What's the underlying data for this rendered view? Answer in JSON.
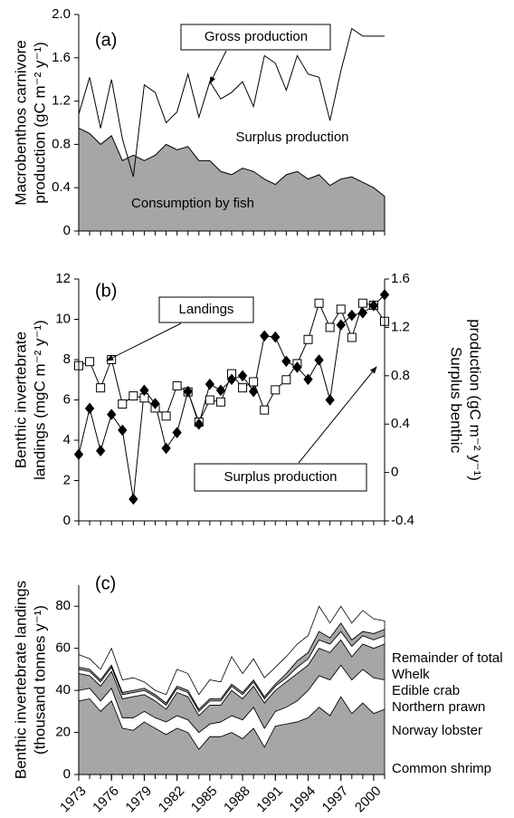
{
  "chart_data": [
    {
      "type": "area",
      "ylabel": [
        "Macrobenthos carnivore",
        "production (gC m⁻² y⁻¹)"
      ],
      "annotations": [
        "(a)",
        "Gross production",
        "Surplus production",
        "Consumption by fish"
      ],
      "x": [
        1973,
        1974,
        1975,
        1976,
        1977,
        1978,
        1979,
        1980,
        1981,
        1982,
        1983,
        1984,
        1985,
        1986,
        1987,
        1988,
        1989,
        1990,
        1991,
        1992,
        1993,
        1994,
        1995,
        1996,
        1997,
        1998,
        1999,
        2000,
        2001
      ],
      "xlim": [
        1973,
        2001
      ],
      "ylim": [
        0,
        2
      ],
      "yticks": [
        0,
        0.4,
        0.8,
        1.2,
        1.6,
        {
          "value": 2,
          "label": "2.0"
        }
      ],
      "series": [
        {
          "name": "Gross production",
          "color": "#000000",
          "values": [
            1.08,
            1.42,
            0.95,
            1.4,
            0.85,
            0.5,
            1.35,
            1.28,
            1.0,
            1.1,
            1.45,
            1.05,
            1.38,
            1.22,
            1.28,
            1.38,
            1.15,
            1.62,
            1.55,
            1.3,
            1.62,
            1.45,
            1.42,
            1.02,
            1.48,
            1.87,
            1.8,
            1.8,
            1.8
          ]
        },
        {
          "name": "Consumption by fish",
          "color": "#a6a6a6",
          "values": [
            0.95,
            0.9,
            0.8,
            0.88,
            0.65,
            0.7,
            0.65,
            0.7,
            0.8,
            0.75,
            0.78,
            0.65,
            0.65,
            0.55,
            0.52,
            0.58,
            0.55,
            0.48,
            0.43,
            0.52,
            0.55,
            0.48,
            0.52,
            0.42,
            0.48,
            0.5,
            0.45,
            0.4,
            0.32
          ]
        }
      ]
    },
    {
      "type": "line",
      "ylabel": [
        "Benthic invertebrate",
        "landings (mgC m⁻² y⁻¹)"
      ],
      "y2label": [
        "Surplus benthic",
        "production (gC m⁻² y⁻¹)"
      ],
      "annotations": [
        "(b)",
        "Landings",
        "Surplus production"
      ],
      "x": [
        1973,
        1974,
        1975,
        1976,
        1977,
        1978,
        1979,
        1980,
        1981,
        1982,
        1983,
        1984,
        1985,
        1986,
        1987,
        1988,
        1989,
        1990,
        1991,
        1992,
        1993,
        1994,
        1995,
        1996,
        1997,
        1998,
        1999,
        2000,
        2001
      ],
      "xlim": [
        1973,
        2001
      ],
      "ylim": [
        0,
        12
      ],
      "yticks": [
        0,
        2,
        4,
        6,
        8,
        10,
        12
      ],
      "y2lim": [
        -0.4,
        1.6
      ],
      "y2ticks": [
        -0.4,
        0,
        0.4,
        0.8,
        1.2,
        1.6
      ],
      "series": [
        {
          "name": "Landings",
          "color": "#ffffff",
          "marker": "square",
          "values": [
            7.7,
            7.9,
            6.6,
            8.0,
            5.8,
            6.2,
            6.1,
            5.6,
            5.2,
            6.7,
            6.4,
            4.9,
            6.0,
            5.9,
            7.3,
            6.6,
            6.9,
            5.5,
            6.5,
            7.0,
            7.8,
            9.0,
            10.8,
            9.6,
            10.5,
            9.1,
            10.8,
            10.7,
            9.9
          ]
        },
        {
          "name": "Surplus production",
          "color": "#000000",
          "marker": "diamond",
          "axis": "y2",
          "values": [
            0.15,
            0.53,
            0.18,
            0.48,
            0.35,
            -0.22,
            0.68,
            0.57,
            0.2,
            0.33,
            0.67,
            0.4,
            0.73,
            0.68,
            0.77,
            0.8,
            0.67,
            1.13,
            1.12,
            0.92,
            0.87,
            0.77,
            0.93,
            0.6,
            1.22,
            1.3,
            1.32,
            1.38,
            1.47
          ]
        }
      ]
    },
    {
      "type": "stacked_area",
      "ylabel": [
        "Benthic invertebrate landings",
        "(thousand tonnes y⁻¹)"
      ],
      "annotations": [
        "(c)"
      ],
      "x": [
        1973,
        1974,
        1975,
        1976,
        1977,
        1978,
        1979,
        1980,
        1981,
        1982,
        1983,
        1984,
        1985,
        1986,
        1987,
        1988,
        1989,
        1990,
        1991,
        1992,
        1993,
        1994,
        1995,
        1996,
        1997,
        1998,
        1999,
        2000,
        2001
      ],
      "xlim": [
        1973,
        2001
      ],
      "xticks": [
        1973,
        1976,
        1979,
        1982,
        1985,
        1988,
        1991,
        1994,
        1997,
        2000
      ],
      "ylim": [
        0,
        90
      ],
      "yticks": [
        0,
        20,
        40,
        60,
        80
      ],
      "series": [
        {
          "name": "Common shrimp",
          "color": "#a6a6a6",
          "values": [
            35,
            36,
            30,
            35,
            22,
            21,
            25,
            22,
            19,
            22,
            20,
            12,
            18,
            18,
            20,
            17,
            22,
            13,
            23,
            24,
            25,
            27,
            32,
            28,
            37,
            29,
            34,
            29,
            31
          ]
        },
        {
          "name": "Norway lobster",
          "color": "#ffffff",
          "values": [
            5,
            5,
            5,
            6,
            5,
            6,
            5,
            5,
            6,
            6,
            6,
            8,
            6,
            7,
            8,
            9,
            10,
            9,
            7,
            8,
            10,
            13,
            15,
            17,
            15,
            16,
            16,
            17,
            14
          ]
        },
        {
          "name": "Northern prawn",
          "color": "#a6a6a6",
          "values": [
            8,
            6,
            7,
            8,
            9,
            10,
            8,
            8,
            6,
            11,
            11,
            8,
            9,
            8,
            12,
            10,
            10,
            12,
            10,
            12,
            13,
            12,
            13,
            13,
            12,
            11,
            12,
            14,
            17
          ]
        },
        {
          "name": "Edible crab",
          "color": "#ffffff",
          "values": [
            2,
            2,
            2,
            2,
            2,
            2,
            2,
            2,
            2,
            2,
            2,
            2,
            2,
            2,
            2,
            2,
            2,
            2,
            2,
            2,
            3,
            3,
            4,
            4,
            4,
            5,
            4,
            4,
            4
          ]
        },
        {
          "name": "Whelk",
          "color": "#a6a6a6",
          "values": [
            1,
            1,
            1,
            1,
            1,
            1,
            1,
            1,
            1,
            1,
            1,
            1,
            1,
            1,
            1,
            1,
            1,
            1,
            1,
            2,
            3,
            3,
            4,
            3,
            4,
            3,
            2,
            3,
            3
          ]
        },
        {
          "name": "Remainder of total",
          "color": "#ffffff",
          "values": [
            6,
            5,
            5,
            8,
            6,
            6,
            3,
            2,
            4,
            8,
            8,
            7,
            9,
            8,
            13,
            9,
            10,
            9,
            8,
            8,
            8,
            8,
            12,
            7,
            8,
            8,
            10,
            7,
            4
          ]
        }
      ]
    }
  ]
}
